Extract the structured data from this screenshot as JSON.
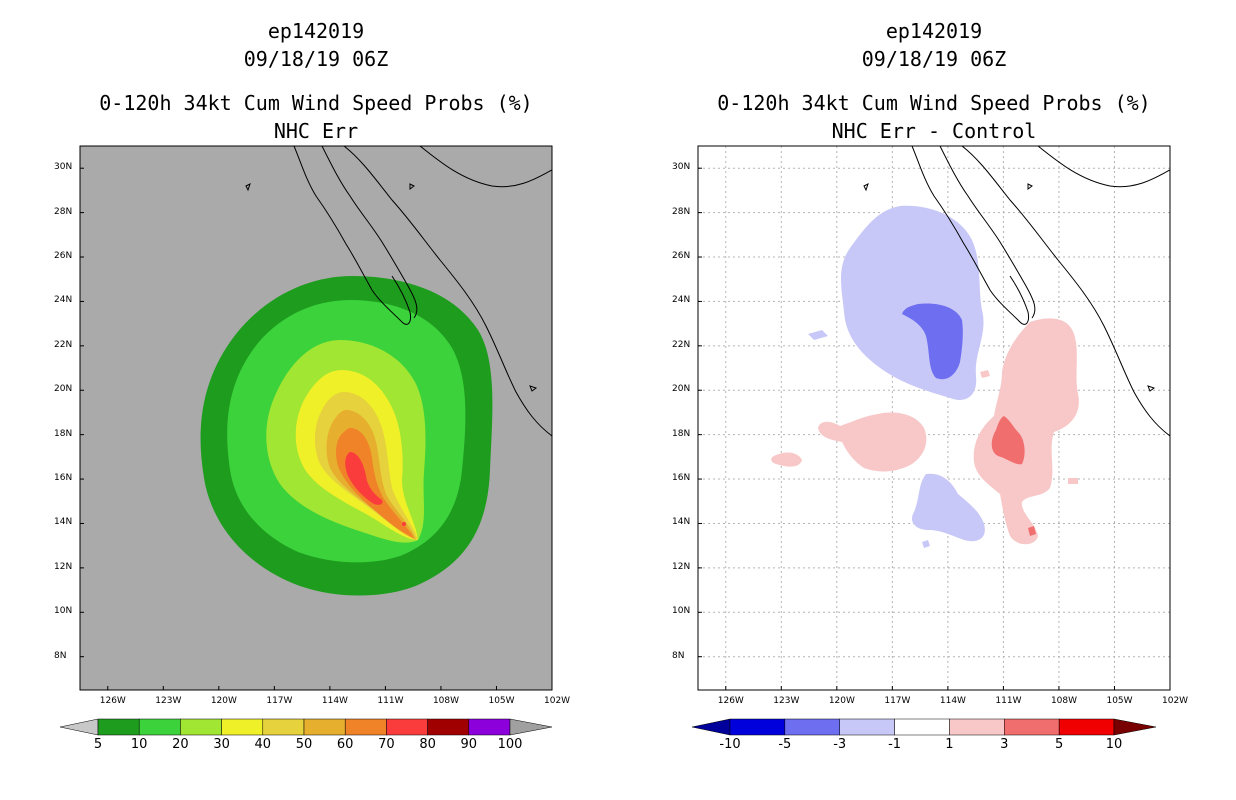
{
  "panels": [
    {
      "title_lines": [
        "ep142019",
        "09/18/19 06Z",
        "0-120h 34kt Cum Wind Speed Probs (%)",
        "NHC Err"
      ],
      "chart_data": {
        "type": "heatmap",
        "title": "0-120h 34kt Cum Wind Speed Probs (%)",
        "subtitle": "NHC Err",
        "storm": "ep142019",
        "time": "09/18/19 06Z",
        "x_ticks": [
          "126W",
          "123W",
          "120W",
          "117W",
          "114W",
          "111W",
          "108W",
          "105W",
          "102W"
        ],
        "y_ticks": [
          "30N",
          "28N",
          "26N",
          "24N",
          "22N",
          "20N",
          "18N",
          "16N",
          "14N",
          "12N",
          "10N",
          "8N"
        ],
        "xlim": [
          -127.5,
          -102
        ],
        "ylim": [
          6.5,
          31
        ],
        "grid": false,
        "colorbar": {
          "levels": [
            "5",
            "10",
            "20",
            "30",
            "40",
            "50",
            "60",
            "70",
            "80",
            "90",
            "100"
          ],
          "colors": [
            "#1e9c1e",
            "#3cd23c",
            "#a0e632",
            "#f0f028",
            "#e6d23c",
            "#e6af2d",
            "#f08228",
            "#fa3c3c",
            "#a00000",
            "#8c00dc"
          ],
          "below_color": "#c8c8c8",
          "above_color": "#a0a0a0"
        },
        "contours": [
          {
            "level": 5,
            "color": "#1e9c1e",
            "center": [
              -114.3,
              18.1
            ],
            "radius_deg": [
              7.1,
              7.1
            ]
          },
          {
            "level": 10,
            "color": "#3cd23c",
            "center": [
              -114.3,
              18.0
            ],
            "radius_deg": [
              6.1,
              5.9
            ]
          },
          {
            "level": 20,
            "color": "#a0e632",
            "center": [
              -113.8,
              17.8
            ],
            "radius_deg": [
              4.6,
              4.3
            ]
          },
          {
            "level": 30,
            "color": "#f0f028",
            "center": [
              -112.7,
              17.0
            ],
            "radius_deg": [
              3.1,
              3.6
            ]
          },
          {
            "level": 40,
            "color": "#e6d23c",
            "center": [
              -112.5,
              16.6
            ],
            "radius_deg": [
              2.3,
              3.0
            ]
          },
          {
            "level": 50,
            "color": "#e6af2d",
            "center": [
              -112.2,
              16.3
            ],
            "radius_deg": [
              1.8,
              2.6
            ]
          },
          {
            "level": 60,
            "color": "#f08228",
            "center": [
              -111.9,
              15.9
            ],
            "radius_deg": [
              1.3,
              2.3
            ]
          },
          {
            "level": 70,
            "color": "#fa3c3c",
            "center": [
              -112.0,
              15.9
            ],
            "radius_deg": [
              0.8,
              1.6
            ]
          }
        ],
        "track_tip": [
          -109.0,
          13.4
        ]
      }
    },
    {
      "title_lines": [
        "ep142019",
        "09/18/19 06Z",
        "0-120h 34kt Cum Wind Speed Probs (%)",
        "NHC Err - Control"
      ],
      "chart_data": {
        "type": "heatmap",
        "title": "0-120h 34kt Cum Wind Speed Probs (%)",
        "subtitle": "NHC Err - Control",
        "storm": "ep142019",
        "time": "09/18/19 06Z",
        "x_ticks": [
          "126W",
          "123W",
          "120W",
          "117W",
          "114W",
          "111W",
          "108W",
          "105W",
          "102W"
        ],
        "y_ticks": [
          "30N",
          "28N",
          "26N",
          "24N",
          "22N",
          "20N",
          "18N",
          "16N",
          "14N",
          "12N",
          "10N",
          "8N"
        ],
        "xlim": [
          -127.5,
          -102
        ],
        "ylim": [
          6.5,
          31
        ],
        "grid": true,
        "colorbar": {
          "levels": [
            "-10",
            "-5",
            "-3",
            "-1",
            "1",
            "3",
            "5",
            "10"
          ],
          "colors": [
            "#0000dc",
            "#6e6ef0",
            "#c8c8f8",
            "#ffffff",
            "#f8c8c8",
            "#f06e6e",
            "#f00000"
          ],
          "below_color": "#00009a",
          "above_color": "#780000"
        },
        "regions": [
          {
            "name": "negative-north",
            "sign": "-",
            "level": "-1 to -3",
            "color": "#c8c8f8",
            "center": [
              -115.5,
              23.0
            ]
          },
          {
            "name": "negative-core",
            "sign": "-",
            "level": "-3 to -5",
            "color": "#6e6ef0",
            "center": [
              -114.2,
              22.2
            ]
          },
          {
            "name": "negative-south",
            "sign": "-",
            "level": "-1 to -3",
            "color": "#c8c8f8",
            "center": [
              -114.6,
              14.6
            ]
          },
          {
            "name": "positive-east",
            "sign": "+",
            "level": "1 to 3",
            "color": "#f8c8c8",
            "center": [
              -109.8,
              18.0
            ]
          },
          {
            "name": "positive-core",
            "sign": "+",
            "level": "3 to 5",
            "color": "#f06e6e",
            "center": [
              -110.6,
              17.6
            ]
          },
          {
            "name": "positive-west",
            "sign": "+",
            "level": "1 to 3",
            "color": "#f8c8c8",
            "center": [
              -118.5,
              17.8
            ]
          }
        ]
      }
    }
  ]
}
